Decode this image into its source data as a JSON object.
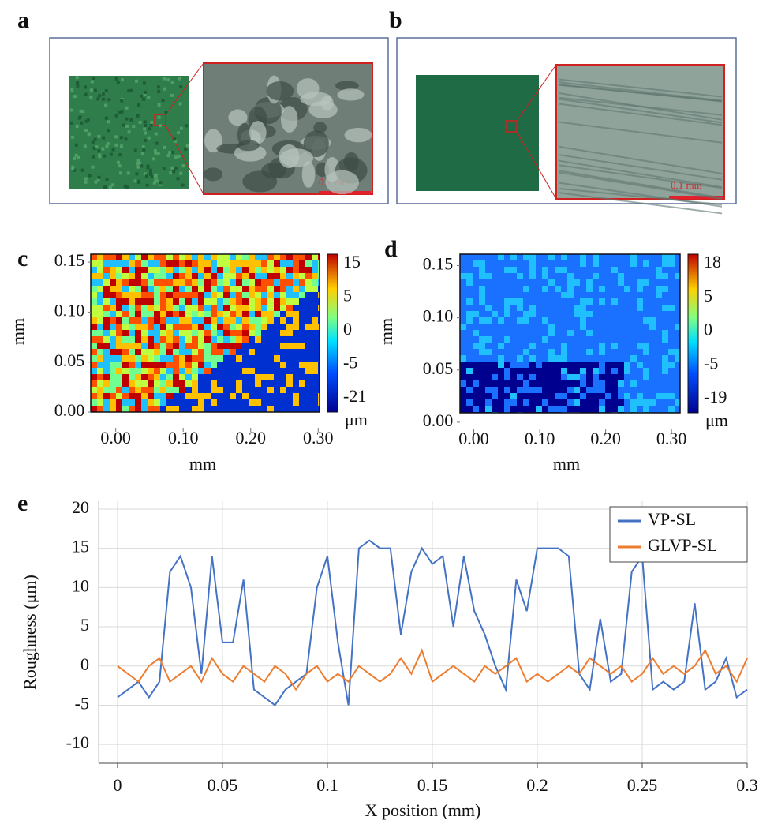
{
  "figure": {
    "panels": [
      "a",
      "b",
      "c",
      "d",
      "e"
    ]
  },
  "photos": [
    {
      "scale_label": "0.1 mm"
    },
    {
      "scale_label": "0.1 mm"
    }
  ],
  "chart_data": [
    {
      "type": "heatmap",
      "xlabel": "mm",
      "ylabel": "mm",
      "xlim": [
        -0.037,
        0.302
      ],
      "ylim": [
        0,
        0.158
      ],
      "xticks": [
        {
          "value": 0,
          "label": "0.00"
        },
        {
          "value": 0.1,
          "label": "0.10"
        },
        {
          "value": 0.2,
          "label": "0.20"
        },
        {
          "value": 0.3,
          "label": "0.30"
        }
      ],
      "yticks": [
        {
          "value": 0,
          "label": "0.00"
        },
        {
          "value": 0.05,
          "label": "0.05"
        },
        {
          "value": 0.1,
          "label": "0.10"
        },
        {
          "value": 0.15,
          "label": "0.15"
        }
      ],
      "colorbar_ticks": [
        15,
        5,
        0,
        -5,
        -21
      ],
      "colorbar_unit": "μm"
    },
    {
      "type": "heatmap",
      "xlabel": "mm",
      "ylabel": "mm",
      "xlim": [
        -0.021,
        0.313
      ],
      "ylim": [
        0.009,
        0.161
      ],
      "xticks": [
        {
          "value": 0,
          "label": "0.00"
        },
        {
          "value": 0.1,
          "label": "0.10"
        },
        {
          "value": 0.2,
          "label": "0.20"
        },
        {
          "value": 0.3,
          "label": "0.30"
        }
      ],
      "yticks": [
        {
          "value": 0,
          "label": "0.00"
        },
        {
          "value": 0.05,
          "label": "0.05"
        },
        {
          "value": 0.1,
          "label": "0.10"
        },
        {
          "value": 0.15,
          "label": "0.15"
        }
      ],
      "colorbar_ticks": [
        18,
        5,
        0,
        -5,
        -19
      ],
      "colorbar_unit": "μm"
    },
    {
      "type": "line",
      "xlabel": "X position (mm)",
      "ylabel": "Roughness (μm)",
      "x": [
        0,
        0.005,
        0.01,
        0.015,
        0.02,
        0.025,
        0.03,
        0.035,
        0.04,
        0.045,
        0.05,
        0.055,
        0.06,
        0.065,
        0.07,
        0.075,
        0.08,
        0.085,
        0.09,
        0.095,
        0.1,
        0.105,
        0.11,
        0.115,
        0.12,
        0.125,
        0.13,
        0.135,
        0.14,
        0.145,
        0.15,
        0.155,
        0.16,
        0.165,
        0.17,
        0.175,
        0.18,
        0.185,
        0.19,
        0.195,
        0.2,
        0.205,
        0.21,
        0.215,
        0.22,
        0.225,
        0.23,
        0.235,
        0.24,
        0.245,
        0.25,
        0.255,
        0.26,
        0.265,
        0.27,
        0.275,
        0.28,
        0.285,
        0.29,
        0.295,
        0.3
      ],
      "series": [
        {
          "name": "VP-SL",
          "color": "#4472c4",
          "values": [
            -4,
            -3,
            -2,
            -4,
            -2,
            12,
            14,
            10,
            -1,
            14,
            3,
            3,
            11,
            -3,
            -4,
            -5,
            -3,
            -2,
            -1,
            10,
            14,
            3,
            -5,
            15,
            16,
            15,
            15,
            4,
            12,
            15,
            13,
            14,
            5,
            14,
            7,
            4,
            0,
            -3,
            11,
            7,
            15,
            15,
            15,
            14,
            -1,
            -3,
            6,
            -2,
            -1,
            12,
            14,
            -3,
            -2,
            -3,
            -2,
            8,
            -3,
            -2,
            1,
            -4,
            -3
          ]
        },
        {
          "name": "GLVP-SL",
          "color": "#ed7d31",
          "values": [
            0,
            -1,
            -2,
            0,
            1,
            -2,
            -1,
            0,
            -2,
            1,
            -1,
            -2,
            0,
            -1,
            -2,
            0,
            -1,
            -3,
            -1,
            0,
            -2,
            -1,
            -2,
            0,
            -1,
            -2,
            -1,
            1,
            -1,
            2,
            -2,
            -1,
            0,
            -1,
            -2,
            0,
            -1,
            0,
            1,
            -2,
            -1,
            -2,
            -1,
            0,
            -1,
            1,
            0,
            -1,
            0,
            -2,
            -1,
            1,
            -1,
            0,
            -1,
            0,
            2,
            -1,
            0,
            -2,
            1
          ]
        }
      ],
      "xlim": [
        -0.009,
        0.3
      ],
      "ylim": [
        -12.4,
        21
      ],
      "xticks": [
        0,
        0.05,
        0.1,
        0.15,
        0.2,
        0.25,
        0.3
      ],
      "yticks": [
        -10,
        -5,
        0,
        5,
        10,
        15,
        20
      ],
      "grid": true,
      "legend": "upper right"
    }
  ]
}
